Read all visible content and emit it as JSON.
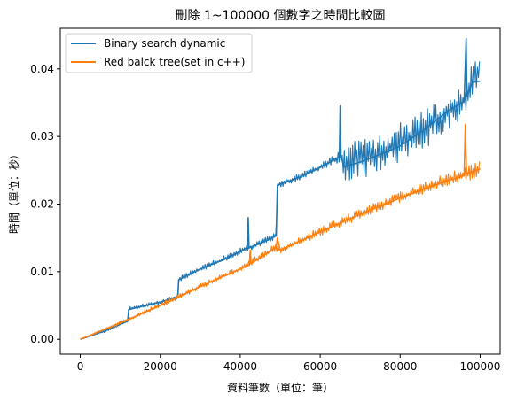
{
  "chart_data": {
    "type": "line",
    "title": "刪除 1~100000 個數字之時間比較圖",
    "xlabel": "資料筆數（單位：筆）",
    "ylabel": "時間（單位：秒）",
    "xlim": [
      -5000,
      105000
    ],
    "ylim": [
      -0.0022,
      0.046
    ],
    "xticks": [
      0,
      20000,
      40000,
      60000,
      80000,
      100000
    ],
    "xtick_labels": [
      "0",
      "20000",
      "40000",
      "60000",
      "80000",
      "100000"
    ],
    "yticks": [
      0.0,
      0.01,
      0.02,
      0.03,
      0.04
    ],
    "ytick_labels": [
      "0.00",
      "0.01",
      "0.02",
      "0.03",
      "0.04"
    ],
    "grid": false,
    "legend_position": "top-left",
    "series": [
      {
        "name": "Binary search dynamic",
        "color": "#1f77b4",
        "points": [
          [
            0,
            0.0
          ],
          [
            6000,
            0.0012
          ],
          [
            11900,
            0.0027
          ],
          [
            12100,
            0.0044
          ],
          [
            20000,
            0.0055
          ],
          [
            24400,
            0.0063
          ],
          [
            24600,
            0.0088
          ],
          [
            30000,
            0.0104
          ],
          [
            36000,
            0.0118
          ],
          [
            41800,
            0.0135
          ],
          [
            42000,
            0.018
          ],
          [
            42200,
            0.0135
          ],
          [
            45000,
            0.0142
          ],
          [
            49000,
            0.0153
          ],
          [
            49300,
            0.0228
          ],
          [
            55000,
            0.024
          ],
          [
            60000,
            0.0254
          ],
          [
            64800,
            0.027
          ],
          [
            65000,
            0.0345
          ],
          [
            65200,
            0.027
          ],
          [
            66000,
            0.0255
          ],
          [
            70000,
            0.0262
          ],
          [
            76000,
            0.0276
          ],
          [
            80000,
            0.0286
          ],
          [
            86000,
            0.031
          ],
          [
            92000,
            0.0338
          ],
          [
            96000,
            0.0352
          ],
          [
            96500,
            0.0445
          ],
          [
            96700,
            0.036
          ],
          [
            98000,
            0.038
          ],
          [
            100000,
            0.0382
          ]
        ],
        "band_upper": [
          [
            0,
            0.0
          ],
          [
            6000,
            0.0015
          ],
          [
            11900,
            0.003
          ],
          [
            12100,
            0.0048
          ],
          [
            20000,
            0.0058
          ],
          [
            24400,
            0.0066
          ],
          [
            24600,
            0.0093
          ],
          [
            30000,
            0.0108
          ],
          [
            36000,
            0.0124
          ],
          [
            41800,
            0.014
          ],
          [
            42000,
            0.014
          ],
          [
            45000,
            0.0147
          ],
          [
            49000,
            0.0158
          ],
          [
            49300,
            0.0233
          ],
          [
            55000,
            0.0246
          ],
          [
            60000,
            0.026
          ],
          [
            64800,
            0.0278
          ],
          [
            66000,
            0.029
          ],
          [
            70000,
            0.0296
          ],
          [
            76000,
            0.0302
          ],
          [
            80000,
            0.032
          ],
          [
            86000,
            0.034
          ],
          [
            92000,
            0.0362
          ],
          [
            96000,
            0.0378
          ],
          [
            98000,
            0.0408
          ],
          [
            100000,
            0.0418
          ]
        ],
        "band_lower": [
          [
            0,
            0.0
          ],
          [
            6000,
            0.001
          ],
          [
            11900,
            0.0025
          ],
          [
            12100,
            0.0042
          ],
          [
            20000,
            0.0052
          ],
          [
            24400,
            0.006
          ],
          [
            24600,
            0.0085
          ],
          [
            30000,
            0.01
          ],
          [
            36000,
            0.0114
          ],
          [
            41800,
            0.013
          ],
          [
            42000,
            0.013
          ],
          [
            45000,
            0.0138
          ],
          [
            49000,
            0.0148
          ],
          [
            49300,
            0.0222
          ],
          [
            55000,
            0.0236
          ],
          [
            60000,
            0.025
          ],
          [
            64800,
            0.0262
          ],
          [
            66000,
            0.0233
          ],
          [
            70000,
            0.0236
          ],
          [
            76000,
            0.025
          ],
          [
            80000,
            0.0262
          ],
          [
            86000,
            0.028
          ],
          [
            92000,
            0.031
          ],
          [
            96000,
            0.0328
          ],
          [
            98000,
            0.036
          ],
          [
            100000,
            0.0365
          ]
        ]
      },
      {
        "name": "Red balck tree(set in c++)",
        "color": "#ff7f0e",
        "points": [
          [
            0,
            0.0
          ],
          [
            10000,
            0.0024
          ],
          [
            20000,
            0.005
          ],
          [
            30000,
            0.0078
          ],
          [
            40000,
            0.0104
          ],
          [
            42300,
            0.011
          ],
          [
            42500,
            0.0132
          ],
          [
            42700,
            0.0112
          ],
          [
            49000,
            0.0136
          ],
          [
            49300,
            0.015
          ],
          [
            50000,
            0.0132
          ],
          [
            60000,
            0.0159
          ],
          [
            70000,
            0.0185
          ],
          [
            80000,
            0.0209
          ],
          [
            90000,
            0.0231
          ],
          [
            96000,
            0.0242
          ],
          [
            96300,
            0.0318
          ],
          [
            96600,
            0.0245
          ],
          [
            98000,
            0.0248
          ],
          [
            100000,
            0.0252
          ]
        ],
        "band_upper": [
          [
            0,
            0.0
          ],
          [
            10000,
            0.0027
          ],
          [
            20000,
            0.0054
          ],
          [
            30000,
            0.0082
          ],
          [
            40000,
            0.0109
          ],
          [
            49000,
            0.0142
          ],
          [
            50000,
            0.0138
          ],
          [
            60000,
            0.0166
          ],
          [
            70000,
            0.0193
          ],
          [
            80000,
            0.0218
          ],
          [
            90000,
            0.0242
          ],
          [
            96000,
            0.0254
          ],
          [
            100000,
            0.0265
          ]
        ],
        "band_lower": [
          [
            0,
            0.0
          ],
          [
            10000,
            0.0021
          ],
          [
            20000,
            0.0047
          ],
          [
            30000,
            0.0074
          ],
          [
            40000,
            0.01
          ],
          [
            49000,
            0.013
          ],
          [
            50000,
            0.0127
          ],
          [
            60000,
            0.0153
          ],
          [
            70000,
            0.0178
          ],
          [
            80000,
            0.0202
          ],
          [
            90000,
            0.0224
          ],
          [
            96000,
            0.0234
          ],
          [
            100000,
            0.0238
          ]
        ]
      }
    ]
  }
}
